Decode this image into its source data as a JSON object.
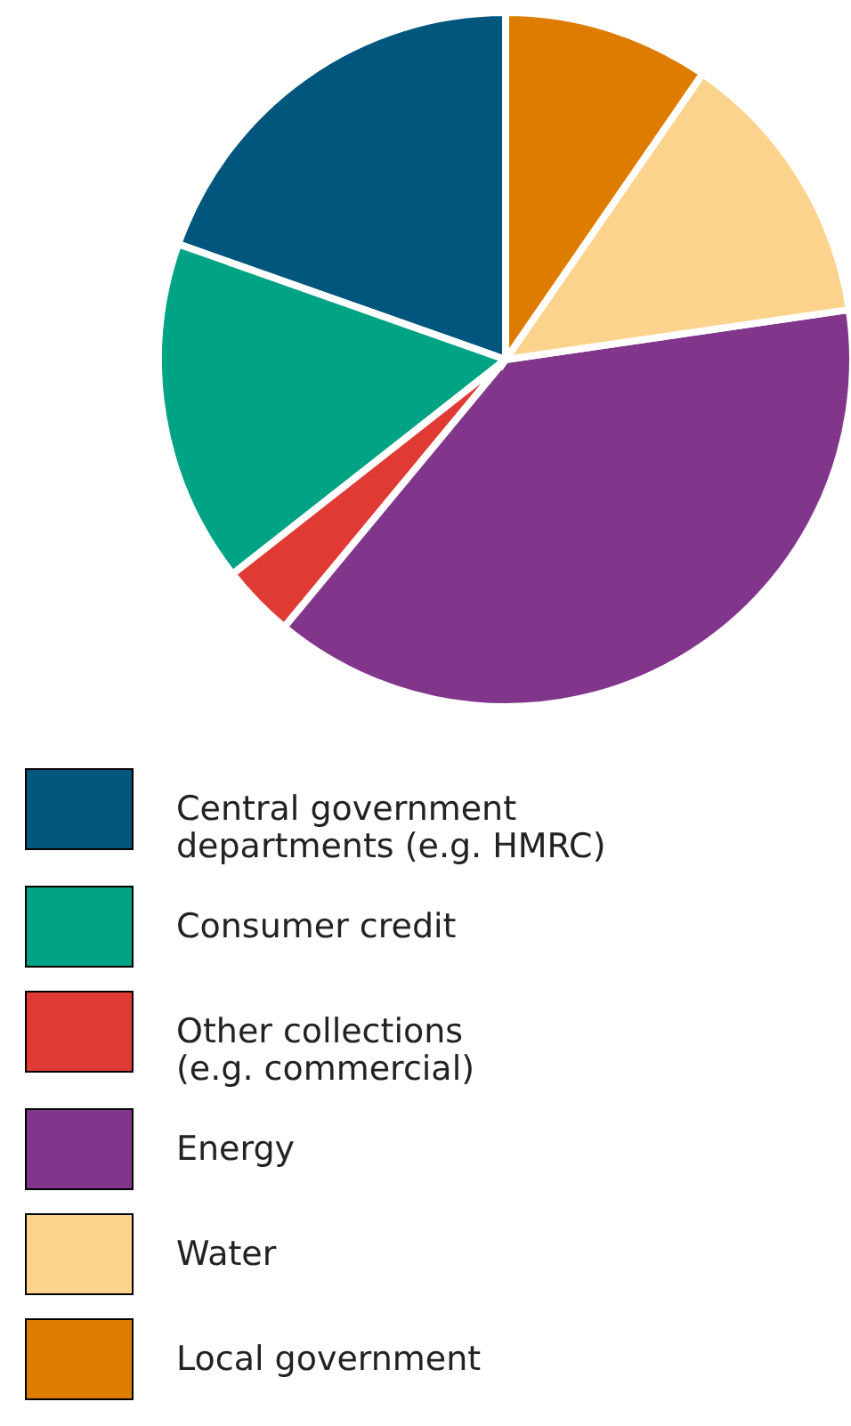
{
  "chart_data": {
    "type": "pie",
    "categories": [
      "Central government departments (e.g. HMRC)",
      "Consumer credit",
      "Other collections (e.g. commercial)",
      "Energy",
      "Water",
      "Local government"
    ],
    "values": [
      19.6,
      16.0,
      3.4,
      38.3,
      13.1,
      9.6
    ],
    "colors": [
      "#00567d",
      "#00a383",
      "#e03a35",
      "#81368b",
      "#fcd38c",
      "#de7c00"
    ],
    "legend": "bottom"
  }
}
